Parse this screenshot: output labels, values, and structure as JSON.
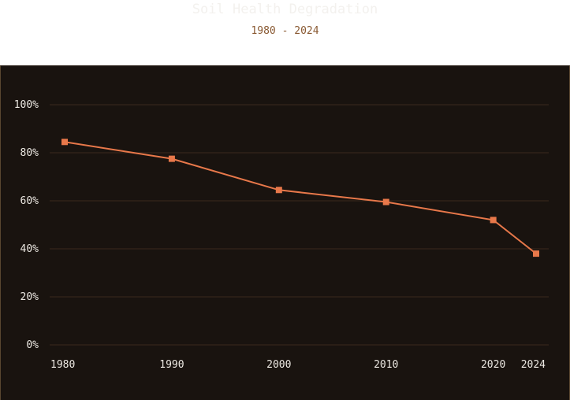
{
  "chart_data": {
    "type": "line",
    "title": "Soil Health Degradation",
    "subtitle": "1980 - 2024",
    "x": [
      "1980",
      "1990",
      "2000",
      "2010",
      "2020",
      "2024"
    ],
    "series": [
      {
        "values": [
          84.5,
          77.5,
          64.5,
          59.5,
          52,
          38
        ]
      }
    ],
    "ylim": [
      0,
      100
    ],
    "yticks": [
      0,
      20,
      40,
      60,
      80,
      100
    ],
    "ytick_labels": [
      "0%",
      "20%",
      "40%",
      "60%",
      "80%",
      "100%"
    ],
    "grid": true,
    "legend": "none",
    "colors": {
      "line": "#e8784a",
      "grid": "#3a2a1e",
      "background": "#19130f",
      "title": "#f3f1ee",
      "subtitle": "#8a5a33",
      "tick_text": "#ece8e2"
    }
  }
}
